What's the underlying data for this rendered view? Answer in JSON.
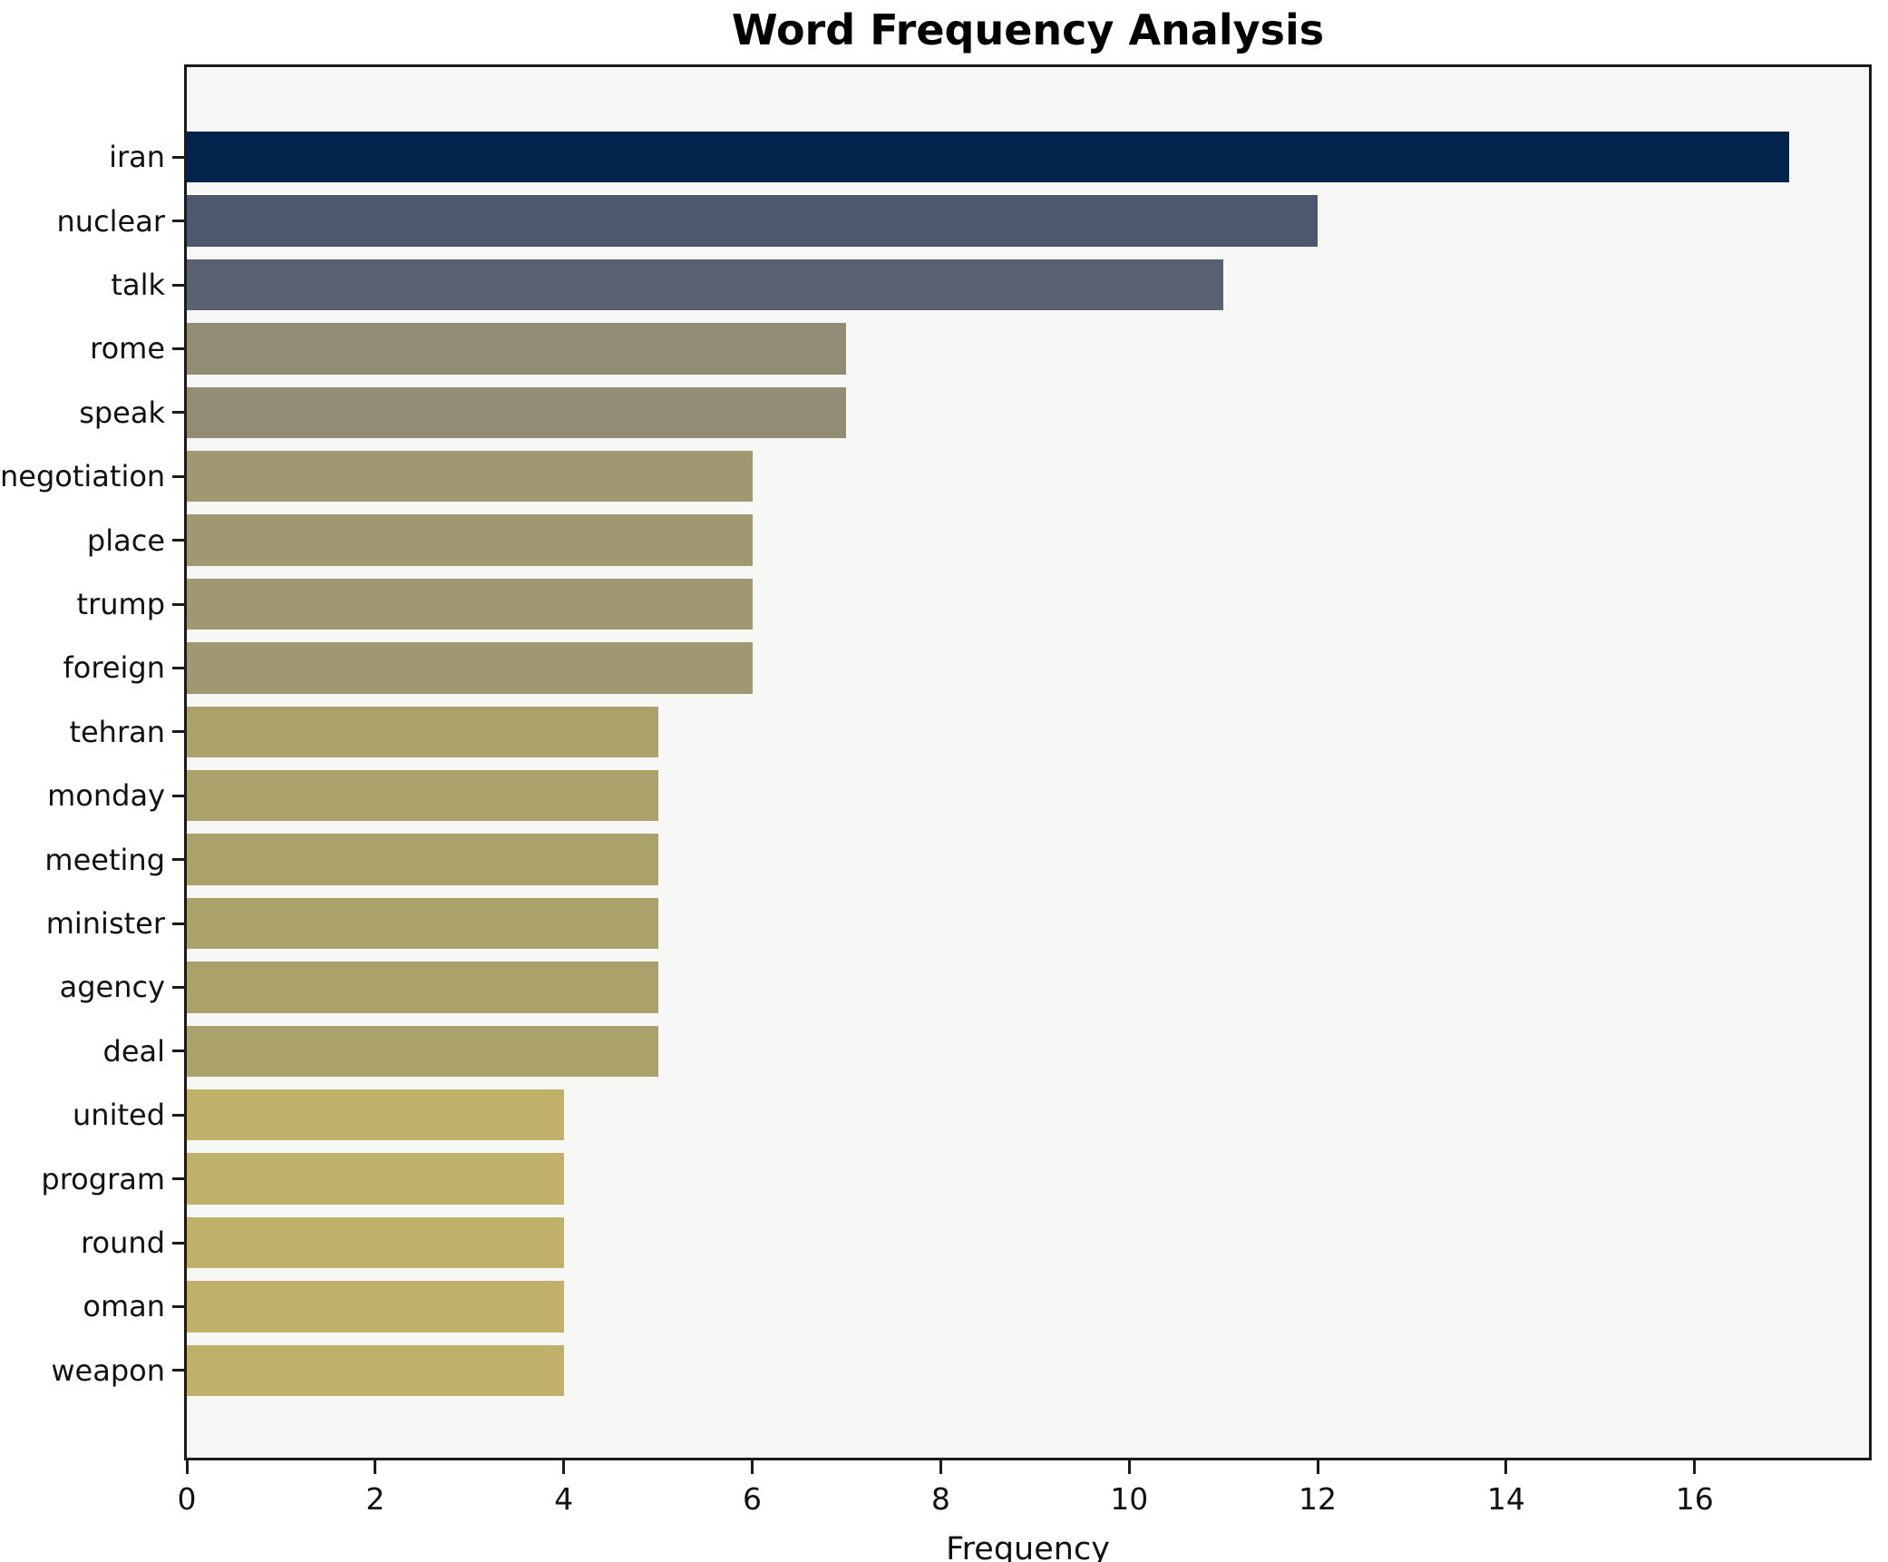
{
  "title": "Word Frequency Analysis",
  "xlabel": "Frequency",
  "chart_data": {
    "type": "bar",
    "orientation": "horizontal",
    "title": "Word Frequency Analysis",
    "xlabel": "Frequency",
    "ylabel": "",
    "categories": [
      "iran",
      "nuclear",
      "talk",
      "rome",
      "speak",
      "negotiation",
      "place",
      "trump",
      "foreign",
      "tehran",
      "monday",
      "meeting",
      "minister",
      "agency",
      "deal",
      "united",
      "program",
      "round",
      "oman",
      "weapon"
    ],
    "values": [
      17,
      12,
      11,
      7,
      7,
      6,
      6,
      6,
      6,
      5,
      5,
      5,
      5,
      5,
      5,
      4,
      4,
      4,
      4,
      4
    ],
    "bar_colors": [
      "#02234c",
      "#4d576e",
      "#5a6170",
      "#938c75",
      "#938c75",
      "#9f9871",
      "#9f9871",
      "#9f9871",
      "#9f9871",
      "#aba26b",
      "#aba26b",
      "#aba26b",
      "#aba26b",
      "#aba26b",
      "#aba26b",
      "#bfb16a",
      "#bfb16a",
      "#bfb16a",
      "#bfb16a",
      "#bfb16a"
    ],
    "xticks": [
      0,
      2,
      4,
      6,
      8,
      10,
      12,
      14,
      16
    ],
    "xlim": [
      0,
      17.85
    ],
    "grid": false,
    "legend": null,
    "plot_background": "#f7f7f5",
    "figure_background": "#ffffff",
    "spine_color": "#1b1b1b",
    "text_color": "#111111"
  }
}
